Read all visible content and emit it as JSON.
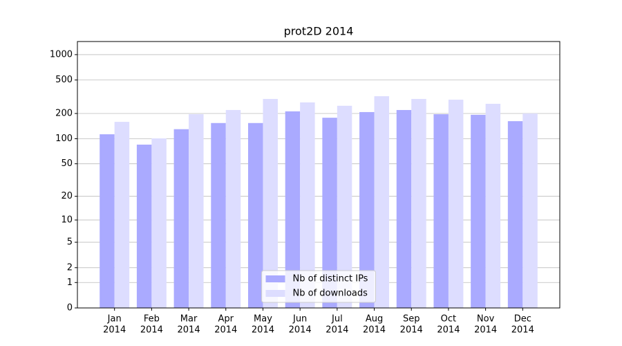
{
  "chart_data": {
    "type": "bar",
    "title": "prot2D 2014",
    "categories": [
      [
        "Jan",
        "2014"
      ],
      [
        "Feb",
        "2014"
      ],
      [
        "Mar",
        "2014"
      ],
      [
        "Apr",
        "2014"
      ],
      [
        "May",
        "2014"
      ],
      [
        "Jun",
        "2014"
      ],
      [
        "Jul",
        "2014"
      ],
      [
        "Aug",
        "2014"
      ],
      [
        "Sep",
        "2014"
      ],
      [
        "Oct",
        "2014"
      ],
      [
        "Nov",
        "2014"
      ],
      [
        "Dec",
        "2014"
      ]
    ],
    "series": [
      {
        "name": "Nb of distinct IPs",
        "color": "#aaaaff",
        "values": [
          113,
          85,
          130,
          154,
          154,
          212,
          178,
          208,
          220,
          196,
          193,
          162
        ]
      },
      {
        "name": "Nb of downloads",
        "color": "#ddddff",
        "values": [
          159,
          101,
          196,
          220,
          298,
          271,
          247,
          321,
          298,
          292,
          261,
          200
        ]
      }
    ],
    "yscale": "log1p",
    "ylim": [
      0,
      1430
    ],
    "yticks": [
      0,
      1,
      2,
      5,
      10,
      20,
      50,
      100,
      200,
      500,
      1000
    ],
    "grid": true,
    "legend": "lower center"
  }
}
